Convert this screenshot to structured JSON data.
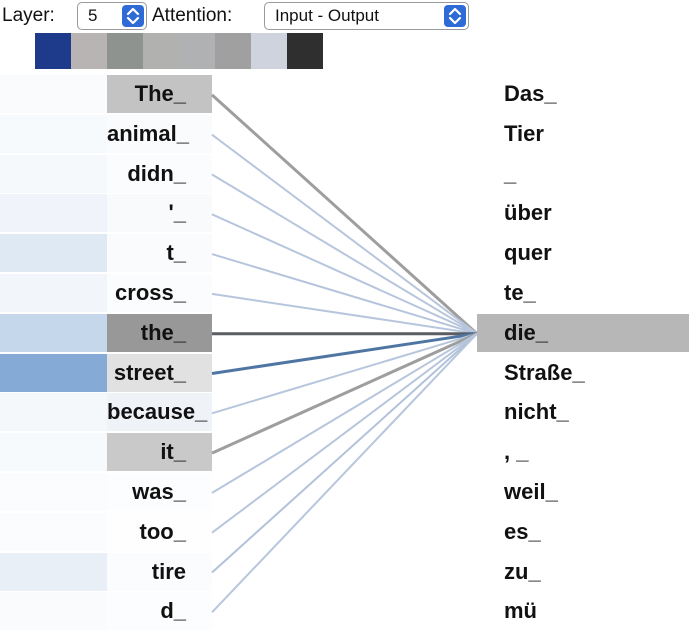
{
  "controls": {
    "layer_label": "Layer:",
    "layer_value": "5",
    "attention_label": "Attention:",
    "attention_value": "Input - Output"
  },
  "head_swatches": [
    "#1e3a8a",
    "#b9b4b4",
    "#8f9390",
    "#b1b2b0",
    "#b0b1b3",
    "#9fa09f",
    "#cfd3dd",
    "#2f2f2f"
  ],
  "input_tokens": [
    "The_",
    "animal_",
    "didn_",
    "'_",
    "t_",
    "cross_",
    "the_",
    "street_",
    "because_",
    "it_",
    "was_",
    "too_",
    "tire",
    "d_"
  ],
  "output_tokens": [
    "Das_",
    "Tier",
    "_",
    "über",
    "quer",
    "te_",
    "die_",
    "Straße_",
    "nicht_",
    ", _",
    "weil_",
    "es_",
    "zu_",
    "mü"
  ],
  "selected_output_index": 6,
  "attention": {
    "token_highlight": [
      0.55,
      0.04,
      0.03,
      0.05,
      0.04,
      0.03,
      0.95,
      0.28,
      0.12,
      0.5,
      0.02,
      0.01,
      0.03,
      0.02
    ],
    "head_fill": [
      0.05,
      0.06,
      0.07,
      0.12,
      0.25,
      0.1,
      0.45,
      0.95,
      0.08,
      0.06,
      0.03,
      0.03,
      0.18,
      0.05
    ],
    "line_weight": [
      0.55,
      0.2,
      0.2,
      0.2,
      0.22,
      0.2,
      0.9,
      0.95,
      0.2,
      0.55,
      0.2,
      0.2,
      0.25,
      0.2
    ]
  }
}
